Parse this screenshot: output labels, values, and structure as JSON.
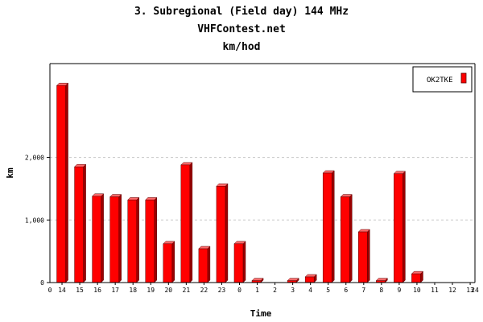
{
  "header": {
    "title": "3. Subregional (Field day) 144 MHz",
    "subtitle": "VHFContest.net",
    "unit": "km/hod"
  },
  "chart_data": {
    "type": "bar",
    "title": "3. Subregional (Field day) 144 MHz",
    "subtitle": "VHFContest.net",
    "unit_label": "km/hod",
    "xlabel": "Time",
    "ylabel": "km",
    "categories": [
      "14",
      "15",
      "16",
      "17",
      "18",
      "19",
      "20",
      "21",
      "22",
      "23",
      "0",
      "1",
      "2",
      "3",
      "4",
      "5",
      "6",
      "7",
      "8",
      "9",
      "10",
      "11",
      "12",
      "13"
    ],
    "x_axis_start_label": "0",
    "x_axis_end_label": "24",
    "y_ticks": [
      0,
      1000,
      2000
    ],
    "y_tick_labels": [
      "0",
      "1,000",
      "2,000"
    ],
    "ylim": [
      0,
      3500
    ],
    "grid": true,
    "legend_position": "top-right",
    "series": [
      {
        "name": "OK2TKE",
        "color": "#ff0000",
        "values": [
          3150,
          1850,
          1380,
          1370,
          1320,
          1320,
          620,
          1880,
          540,
          1540,
          620,
          30,
          0,
          30,
          90,
          1750,
          1370,
          810,
          30,
          1740,
          140,
          0,
          0,
          0
        ]
      }
    ]
  }
}
